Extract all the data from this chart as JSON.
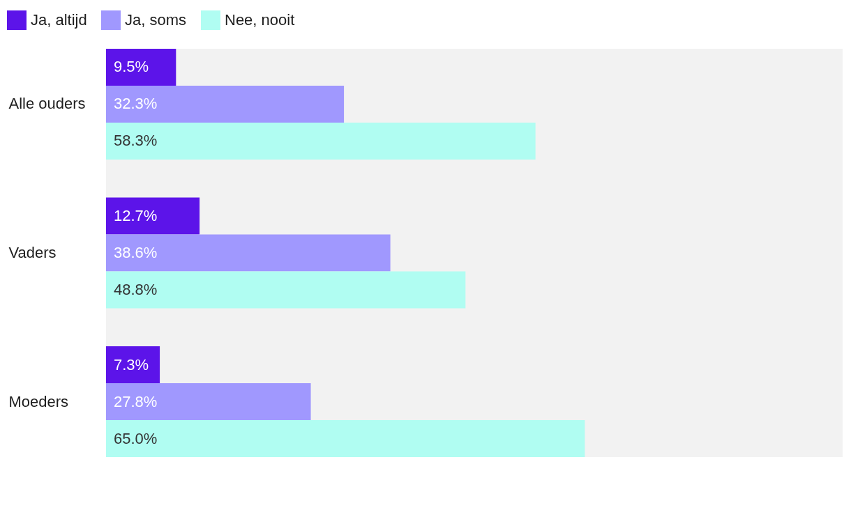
{
  "chart_data": {
    "type": "bar",
    "orientation": "horizontal",
    "categories": [
      "Alle ouders",
      "Vaders",
      "Moeders"
    ],
    "series": [
      {
        "name": "Ja, altijd",
        "color": "#5c14e9",
        "values": [
          9.5,
          12.7,
          7.3
        ],
        "value_labels": [
          "9.5%",
          "12.7%",
          "7.3%"
        ]
      },
      {
        "name": "Ja, soms",
        "color": "#a098fe",
        "values": [
          32.3,
          38.6,
          27.8
        ],
        "value_labels": [
          "32.3%",
          "38.6%",
          "27.8%"
        ]
      },
      {
        "name": "Nee, nooit",
        "color": "#b0fdf2",
        "values": [
          58.3,
          48.8,
          65.0
        ],
        "value_labels": [
          "58.3%",
          "48.8%",
          "65.0%"
        ]
      }
    ],
    "xlim": [
      0,
      100
    ],
    "tick_labels": "y",
    "legend": "top left",
    "bands": [
      {
        "axis": "x",
        "from": 0,
        "to": 100,
        "color": "#f2f2f2"
      }
    ]
  }
}
